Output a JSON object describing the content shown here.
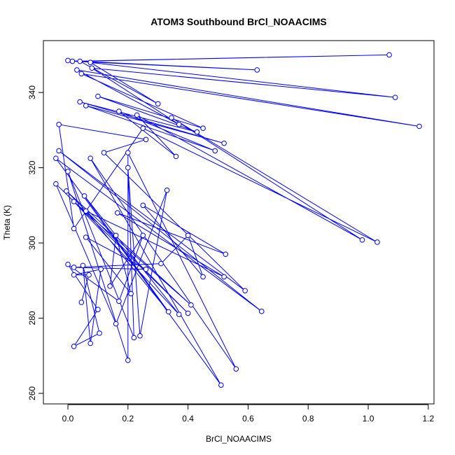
{
  "chart_data": {
    "type": "line-points",
    "title": "ATOM3 Southbound BrCl_NOAACIMS",
    "x_label": "BrCl_NOAACIMS",
    "y_label": "Theta (K)",
    "color": "#0000ff",
    "x": [
      0.0,
      0.63,
      0.015,
      1.07,
      0.04,
      0.3,
      0.075,
      1.09,
      0.08,
      0.37,
      0.03,
      1.17,
      0.045,
      0.45,
      0.1,
      0.43,
      0.04,
      0.52,
      0.06,
      0.49,
      0.17,
      0.36,
      0.23,
      0.98,
      0.345,
      1.03,
      0.25,
      0.02,
      -0.03,
      0.26,
      0.12,
      0.59,
      -0.03,
      0.645,
      -0.04,
      0.51,
      0.075,
      0.56,
      0.2,
      0.2,
      0.0,
      0.22,
      0.2,
      0.24,
      0.33,
      0.16,
      -0.04,
      0.4,
      -0.005,
      0.41,
      0.02,
      0.37,
      0.055,
      0.335,
      0.06,
      0.52,
      0.165,
      0.525,
      0.25,
      0.45,
      0.4,
      0.31,
      0.02,
      0.26,
      0.06,
      0.21,
      0.16,
      0.14,
      0.25,
      0.17,
      0.0,
      0.1,
      0.02,
      0.105,
      0.05,
      0.075,
      0.11,
      0.02,
      0.07,
      0.045
    ],
    "values": [
      348.5,
      346.0,
      348.3,
      350.0,
      348.3,
      337.0,
      348.0,
      338.7,
      346.5,
      331.5,
      346.0,
      331.0,
      345.0,
      330.5,
      339.0,
      329.5,
      337.5,
      326.5,
      336.5,
      324.5,
      335.0,
      323.0,
      334.0,
      300.8,
      333.3,
      300.2,
      330.5,
      303.8,
      331.5,
      327.5,
      324.0,
      287.3,
      324.5,
      281.8,
      322.5,
      262.2,
      322.5,
      266.5,
      324.0,
      268.8,
      319.0,
      274.8,
      320.0,
      275.3,
      314.0,
      278.5,
      315.7,
      281.3,
      313.8,
      283.5,
      311.0,
      281.0,
      312.5,
      281.7,
      308.5,
      291.0,
      308.0,
      297.0,
      310.0,
      291.0,
      302.0,
      294.5,
      293.5,
      293.0,
      301.5,
      286.5,
      302.0,
      288.5,
      302.0,
      284.5,
      294.3,
      282.3,
      272.5,
      276.0,
      294.0,
      273.3,
      293.0,
      291.5,
      291.5,
      284.2
    ],
    "xlim": [
      -0.0816,
      1.219
    ],
    "ylim": [
      257.2,
      353.8
    ],
    "xticks": [
      {
        "value": 0.0,
        "label": "0.0"
      },
      0.2,
      0.4,
      0.6,
      0.8,
      {
        "value": 1.0,
        "label": "1.0"
      },
      1.2
    ],
    "yticks": [
      260,
      280,
      300,
      320,
      340
    ]
  }
}
